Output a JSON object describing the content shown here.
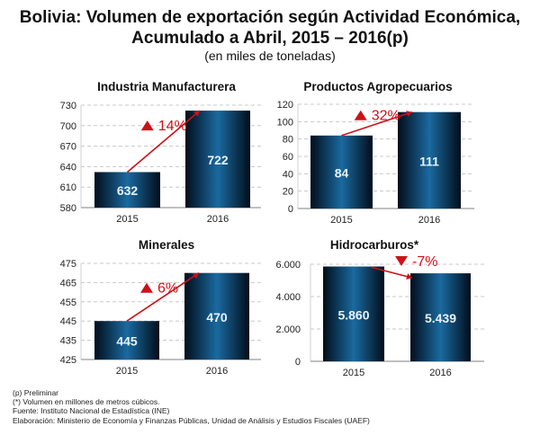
{
  "title": {
    "line1": "Bolivia: Volumen de exportación según Actividad Económica,",
    "line2": "Acumulado a Abril, 2015 – 2016(p)",
    "subtitle": "(en miles de toneladas)"
  },
  "colors": {
    "bar_center": "#1a6aa0",
    "bar_edge": "#020d1a",
    "arrow": "#cc1118",
    "grid": "#c8c8c8",
    "axis": "#9a9a9a"
  },
  "chart_data": [
    {
      "type": "bar",
      "title": "Industria Manufacturera",
      "categories": [
        "2015",
        "2016"
      ],
      "values": [
        632,
        722
      ],
      "value_labels": [
        "632",
        "722"
      ],
      "ylim": [
        580,
        730
      ],
      "yticks": [
        580,
        610,
        640,
        670,
        700,
        730
      ],
      "ytick_labels": [
        "580",
        "610",
        "640",
        "670",
        "700",
        "730"
      ],
      "grid": true,
      "annotation": {
        "direction": "up",
        "text": "14%"
      }
    },
    {
      "type": "bar",
      "title": "Productos Agropecuarios",
      "categories": [
        "2015",
        "2016"
      ],
      "values": [
        84,
        111
      ],
      "value_labels": [
        "84",
        "111"
      ],
      "ylim": [
        0,
        120
      ],
      "yticks": [
        0,
        20,
        40,
        60,
        80,
        100,
        120
      ],
      "ytick_labels": [
        "0",
        "20",
        "40",
        "60",
        "80",
        "100",
        "120"
      ],
      "grid": true,
      "annotation": {
        "direction": "up",
        "text": "32%"
      }
    },
    {
      "type": "bar",
      "title": "Minerales",
      "categories": [
        "2015",
        "2016"
      ],
      "values": [
        445,
        470
      ],
      "value_labels": [
        "445",
        "470"
      ],
      "ylim": [
        425,
        475
      ],
      "yticks": [
        425,
        435,
        445,
        455,
        465,
        475
      ],
      "ytick_labels": [
        "425",
        "435",
        "445",
        "455",
        "465",
        "475"
      ],
      "grid": true,
      "annotation": {
        "direction": "up",
        "text": "6%"
      }
    },
    {
      "type": "bar",
      "title": "Hidrocarburos*",
      "categories": [
        "2015",
        "2016"
      ],
      "values": [
        5860,
        5439
      ],
      "value_labels": [
        "5.860",
        "5.439"
      ],
      "ylim": [
        0,
        6000
      ],
      "yticks": [
        0,
        2000,
        4000,
        6000
      ],
      "ytick_labels": [
        "0",
        "2.000",
        "4.000",
        "6.000"
      ],
      "grid": true,
      "annotation": {
        "direction": "down",
        "text": "-7%"
      }
    }
  ],
  "notes": [
    "(p) Preliminar",
    "(*) Volumen en millones de metros cúbicos.",
    "Fuente: Instituto Nacional de Estadística (INE)",
    "Elaboración: Ministerio de Economía y Finanzas Públicas, Unidad de Análisis y Estudios Fiscales (UAEF)"
  ]
}
